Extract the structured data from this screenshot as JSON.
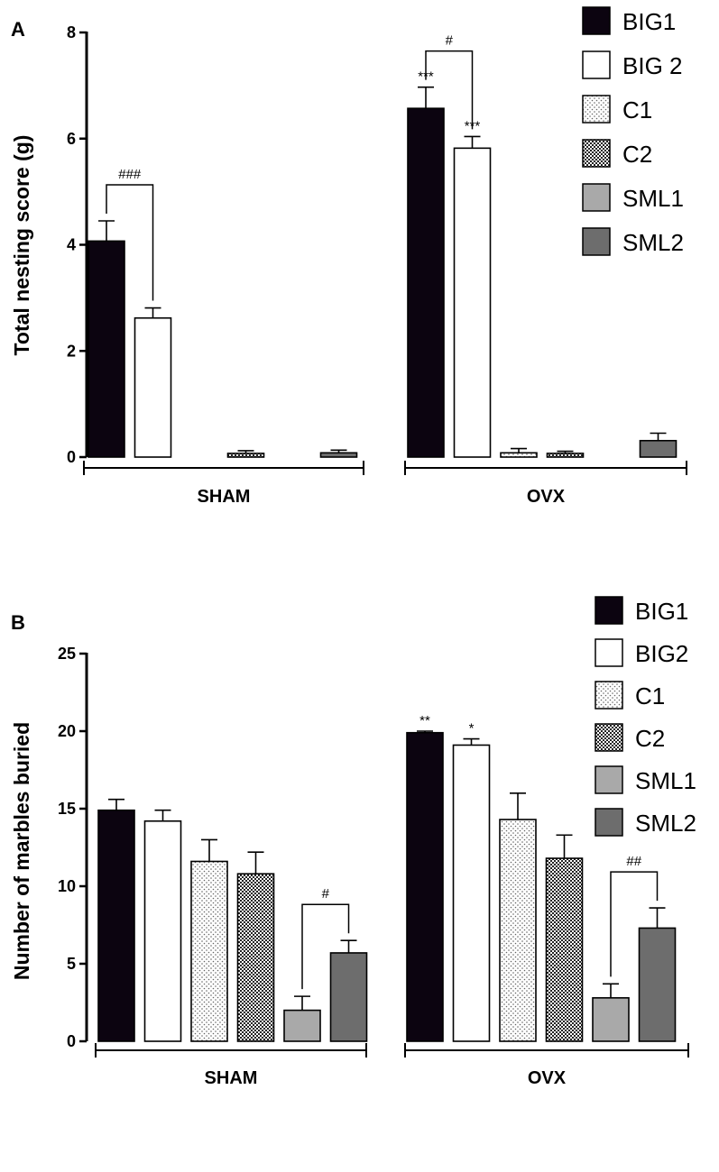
{
  "chart_data": [
    {
      "type": "bar",
      "panel": "A",
      "ylabel": "Total nesting score (g)",
      "ylim": [
        0,
        8
      ],
      "yticks": [
        0,
        2,
        4,
        6,
        8
      ],
      "groups": [
        "SHAM",
        "OVX"
      ],
      "series": [
        {
          "name": "BIG1",
          "fill": "black",
          "values": [
            4.07,
            6.57
          ],
          "errors": [
            0.38,
            0.4
          ]
        },
        {
          "name": "BIG 2",
          "fill": "white",
          "values": [
            2.62,
            5.82
          ],
          "errors": [
            0.19,
            0.22
          ]
        },
        {
          "name": "C1",
          "fill": "dots",
          "values": [
            0.0,
            0.08
          ],
          "errors": [
            0.0,
            0.08
          ]
        },
        {
          "name": "C2",
          "fill": "checker",
          "values": [
            0.07,
            0.07
          ],
          "errors": [
            0.05,
            0.04
          ]
        },
        {
          "name": "SML1",
          "fill": "lightgray",
          "values": [
            0.0,
            0.0
          ],
          "errors": [
            0.0,
            0.0
          ]
        },
        {
          "name": "SML2",
          "fill": "darkgray",
          "values": [
            0.08,
            0.31
          ],
          "errors": [
            0.05,
            0.14
          ]
        }
      ],
      "significance": [
        {
          "type": "bracket",
          "group": 0,
          "from": 0,
          "to": 1,
          "label": "###"
        },
        {
          "type": "bracket",
          "group": 1,
          "from": 0,
          "to": 1,
          "label": "#"
        },
        {
          "type": "star",
          "group": 1,
          "series": 0,
          "label": "***"
        },
        {
          "type": "star",
          "group": 1,
          "series": 1,
          "label": "***"
        }
      ]
    },
    {
      "type": "bar",
      "panel": "B",
      "ylabel": "Number of marbles buried",
      "ylim": [
        0,
        25
      ],
      "yticks": [
        0,
        5,
        10,
        15,
        20,
        25
      ],
      "groups": [
        "SHAM",
        "OVX"
      ],
      "series": [
        {
          "name": "BIG1",
          "fill": "black",
          "values": [
            14.9,
            19.9
          ],
          "errors": [
            0.7,
            0.1
          ]
        },
        {
          "name": "BIG2",
          "fill": "white",
          "values": [
            14.2,
            19.1
          ],
          "errors": [
            0.7,
            0.4
          ]
        },
        {
          "name": "C1",
          "fill": "dots",
          "values": [
            11.6,
            14.3
          ],
          "errors": [
            1.4,
            1.7
          ]
        },
        {
          "name": "C2",
          "fill": "checker",
          "values": [
            10.8,
            11.8
          ],
          "errors": [
            1.4,
            1.5
          ]
        },
        {
          "name": "SML1",
          "fill": "lightgray",
          "values": [
            2.0,
            2.8
          ],
          "errors": [
            0.9,
            0.9
          ]
        },
        {
          "name": "SML2",
          "fill": "darkgray",
          "values": [
            5.7,
            7.3
          ],
          "errors": [
            0.8,
            1.3
          ]
        }
      ],
      "significance": [
        {
          "type": "bracket",
          "group": 0,
          "from": 4,
          "to": 5,
          "label": "#"
        },
        {
          "type": "bracket",
          "group": 1,
          "from": 4,
          "to": 5,
          "label": "##"
        },
        {
          "type": "star",
          "group": 1,
          "series": 0,
          "label": "**"
        },
        {
          "type": "star",
          "group": 1,
          "series": 1,
          "label": "*"
        }
      ]
    }
  ]
}
